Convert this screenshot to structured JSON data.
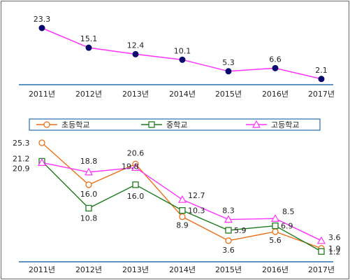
{
  "chart_data": [
    {
      "type": "line",
      "categories": [
        "2011년",
        "2012년",
        "2013년",
        "2014년",
        "2015년",
        "2016년",
        "2017년"
      ],
      "series": [
        {
          "values": [
            23.3,
            15.1,
            12.4,
            10.1,
            5.3,
            6.6,
            2.1
          ]
        }
      ],
      "data_labels": [
        "23.3",
        "15.1",
        "12.4",
        "10.1",
        "5.3",
        "6.6",
        "2.1"
      ],
      "legend": "none",
      "grid": false,
      "colors": {
        "line": "#ff33ff",
        "marker": "#0a0a6e",
        "axis": "#2a6fb0"
      }
    },
    {
      "type": "line",
      "categories": [
        "2011년",
        "2012년",
        "2013년",
        "2014년",
        "2015년",
        "2016년",
        "2017년"
      ],
      "series": [
        {
          "name": "초등학교",
          "values": [
            25.3,
            16.0,
            20.6,
            8.9,
            3.6,
            5.6,
            1.9
          ],
          "labels": [
            "25.3",
            "16.0",
            "20.6",
            "8.9",
            "3.6",
            "5.6",
            "1.9"
          ],
          "color": "#e8711a",
          "marker": "circle"
        },
        {
          "name": "중학교",
          "values": [
            21.2,
            10.8,
            16.0,
            10.3,
            5.9,
            6.9,
            1.2
          ],
          "labels": [
            "21.2",
            "10.8",
            "16.0",
            "10.3",
            "5.9",
            "6.9",
            "1.2"
          ],
          "color": "#1e7a1e",
          "marker": "square"
        },
        {
          "name": "고등학교",
          "values": [
            20.9,
            18.8,
            19.8,
            12.7,
            8.3,
            8.5,
            3.6
          ],
          "labels": [
            "20.9",
            "18.8",
            "19.8",
            "12.7",
            "8.3",
            "8.5",
            "3.6"
          ],
          "color": "#ff33ff",
          "marker": "triangle"
        }
      ],
      "legend": "top",
      "grid": false,
      "colors": {
        "axis": "#2a6fb0",
        "legend_border": "#2a6fb0"
      }
    }
  ]
}
